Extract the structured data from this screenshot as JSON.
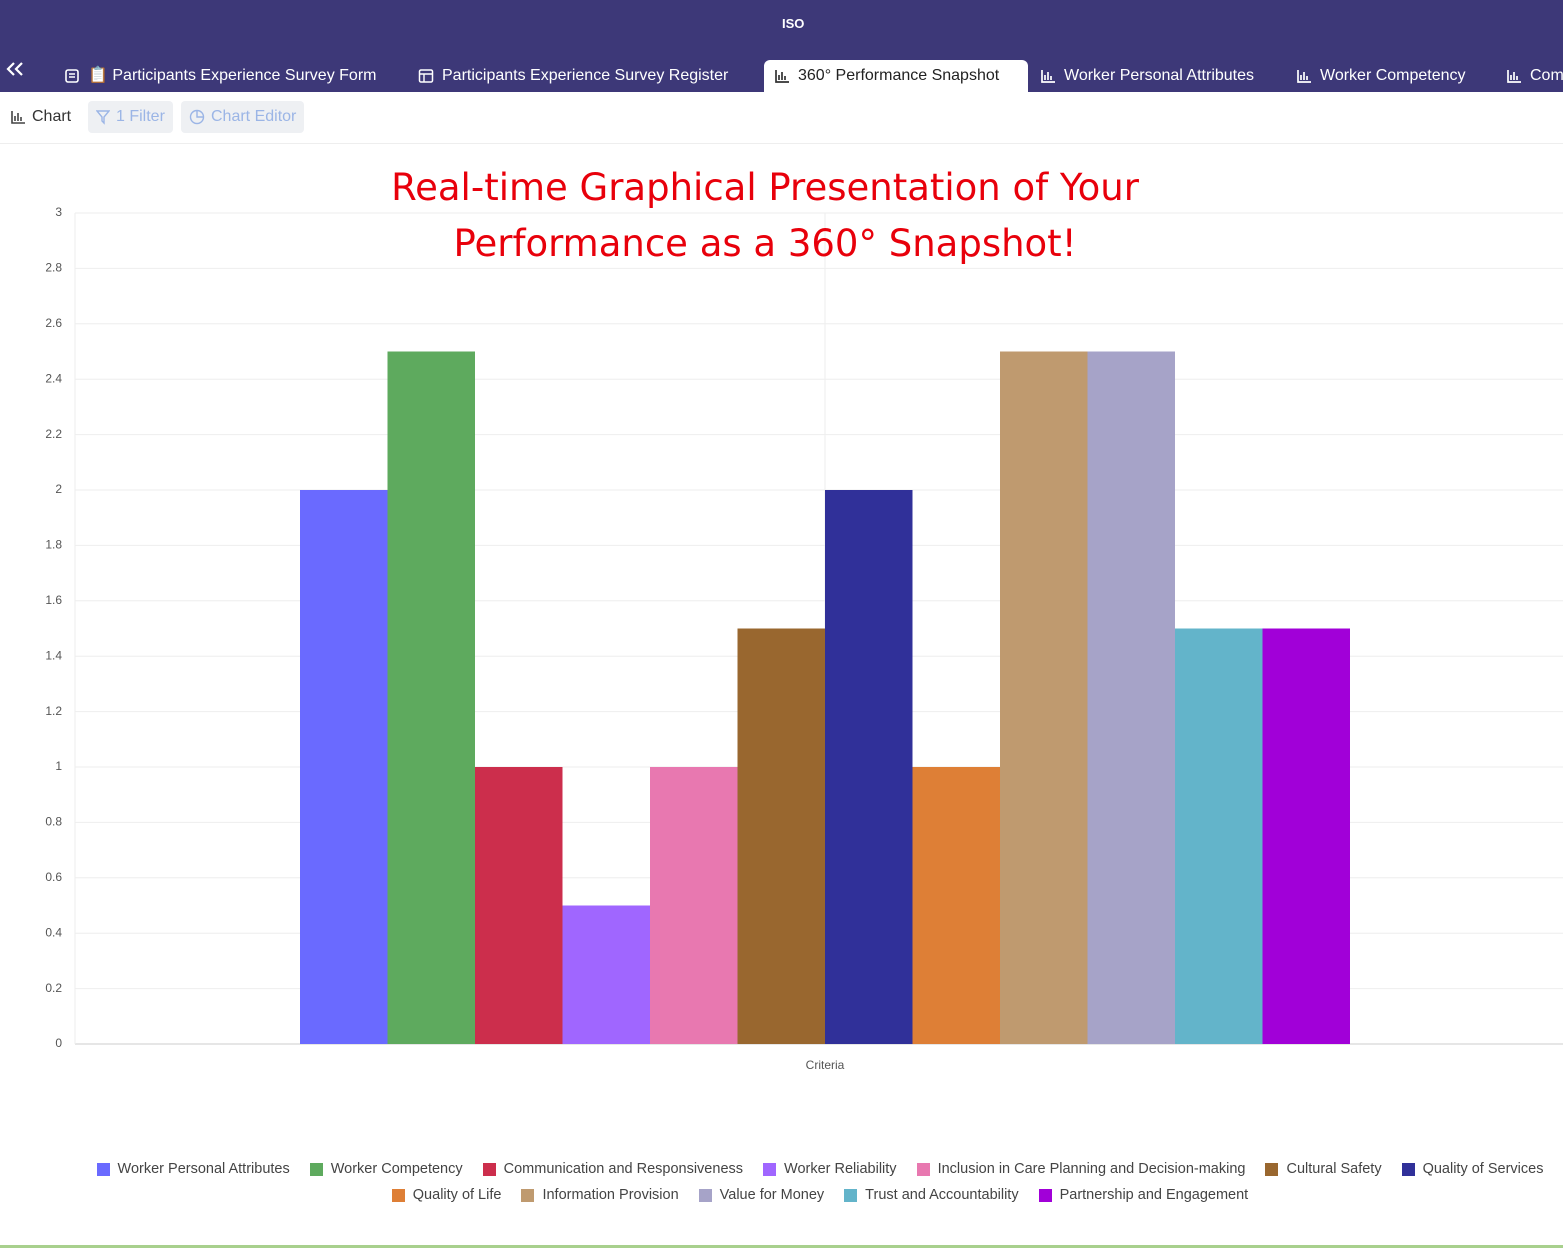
{
  "header": {
    "logo": "ISO"
  },
  "tabs": [
    "📋 Participants Experience Survey Form",
    "Participants Experience Survey Register",
    "360° Performance Snapshot",
    "Worker Personal Attributes",
    "Worker Competency",
    "Com"
  ],
  "toolbar": [
    "Chart",
    "1 Filter",
    "Chart Editor"
  ],
  "chart_data": {
    "type": "bar",
    "title": "Real-time Graphical Presentation of Your Performance as a 360° Snapshot!",
    "categories": [
      "Criteria"
    ],
    "series": [
      {
        "name": "Worker Personal Attributes",
        "color": "#6a6aff",
        "values": [
          2
        ]
      },
      {
        "name": "Worker Competency",
        "color": "#5eaa5e",
        "values": [
          2.5
        ]
      },
      {
        "name": "Communication and Responsiveness",
        "color": "#cc2e4c",
        "values": [
          1
        ]
      },
      {
        "name": "Worker Reliability",
        "color": "#a066ff",
        "values": [
          0.5
        ]
      },
      {
        "name": "Inclusion in Care Planning and Decision-making",
        "color": "#e878b0",
        "values": [
          1
        ]
      },
      {
        "name": "Cultural Safety",
        "color": "#99672f",
        "values": [
          1.5
        ]
      },
      {
        "name": "Quality of Services",
        "color": "#303099",
        "values": [
          2
        ]
      },
      {
        "name": "Quality of Life",
        "color": "#de7f36",
        "values": [
          1
        ]
      },
      {
        "name": "Information Provision",
        "color": "#bf9a6f",
        "values": [
          2.5
        ]
      },
      {
        "name": "Value for Money",
        "color": "#a6a3c8",
        "values": [
          2.5
        ]
      },
      {
        "name": "Trust and Accountability",
        "color": "#63b4ca",
        "values": [
          1.5
        ]
      },
      {
        "name": "Partnership and Engagement",
        "color": "#a100d8",
        "values": [
          1.5
        ]
      }
    ],
    "ylim": [
      0,
      3
    ],
    "yticks": [
      0,
      0.2,
      0.4,
      0.6,
      0.8,
      1,
      1.2,
      1.4,
      1.6,
      1.8,
      2,
      2.2,
      2.4,
      2.6,
      2.8,
      3
    ],
    "grid": true
  }
}
